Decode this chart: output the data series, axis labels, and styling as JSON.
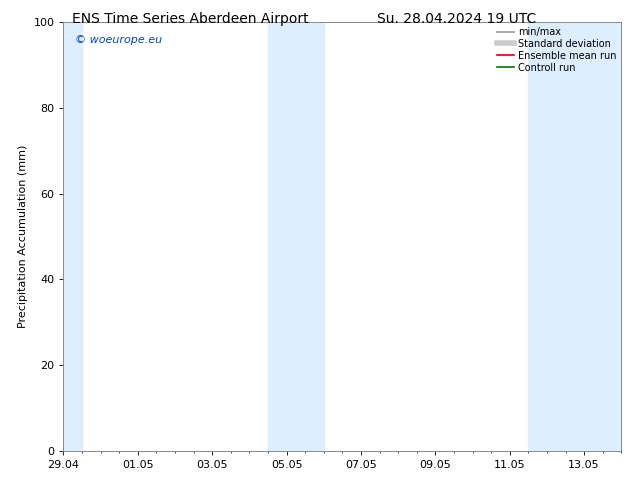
{
  "title_left": "ENS Time Series Aberdeen Airport",
  "title_right": "Su. 28.04.2024 19 UTC",
  "ylabel": "Precipitation Accumulation (mm)",
  "ylim": [
    0,
    100
  ],
  "yticks": [
    0,
    20,
    40,
    60,
    80,
    100
  ],
  "xtick_labels": [
    "29.04",
    "01.05",
    "03.05",
    "05.05",
    "07.05",
    "09.05",
    "11.05",
    "13.05"
  ],
  "xtick_positions": [
    0,
    2,
    4,
    6,
    8,
    10,
    12,
    14
  ],
  "xlim": [
    0,
    15
  ],
  "shaded_regions": [
    {
      "x_start": 0.0,
      "x_end": 0.5
    },
    {
      "x_start": 5.5,
      "x_end": 7.0
    },
    {
      "x_start": 12.5,
      "x_end": 15.0
    }
  ],
  "shaded_color": "#ddeeff",
  "watermark_text": "© woeurope.eu",
  "watermark_color": "#0044cc",
  "legend_entries": [
    {
      "label": "min/max",
      "color": "#999999",
      "lw": 1.2
    },
    {
      "label": "Standard deviation",
      "color": "#cccccc",
      "lw": 4.0
    },
    {
      "label": "Ensemble mean run",
      "color": "#dd0000",
      "lw": 1.2
    },
    {
      "label": "Controll run",
      "color": "#007700",
      "lw": 1.2
    }
  ],
  "bg_color": "#ffffff",
  "spine_color": "#888888",
  "title_fontsize": 10,
  "label_fontsize": 8,
  "tick_fontsize": 8,
  "legend_fontsize": 7,
  "watermark_fontsize": 8
}
